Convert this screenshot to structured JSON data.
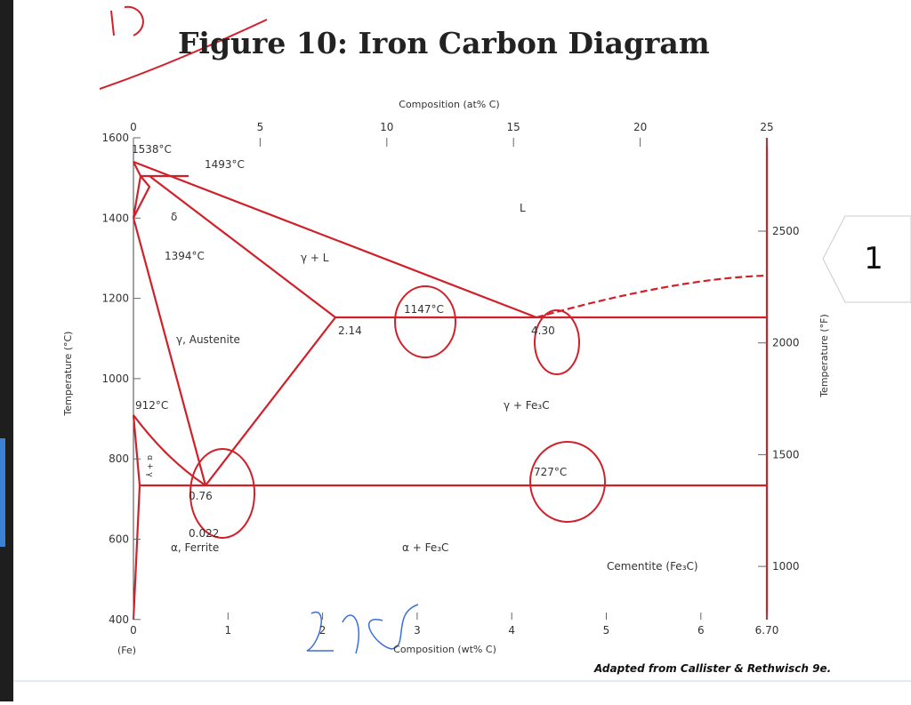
{
  "header": {
    "title": "Figure 10: Iron Carbon Diagram"
  },
  "axes": {
    "left": {
      "label": "Temperature (°C)",
      "ticks": [
        1600,
        1400,
        1200,
        1000,
        800,
        600,
        400
      ]
    },
    "right": {
      "label": "Temperature (°F)",
      "ticks": [
        2500,
        2000,
        1500,
        1000
      ]
    },
    "top": {
      "label": "Composition (at% C)",
      "ticks": [
        0,
        5,
        10,
        15,
        20,
        25
      ]
    },
    "bottom": {
      "label": "Composition (wt% C)",
      "ticks": [
        0,
        1,
        2,
        3,
        4,
        5,
        6,
        "6.70"
      ],
      "origin": "(Fe)"
    }
  },
  "labels": [
    "1538°C",
    "1493°C",
    "δ",
    "1394°C",
    "L",
    "γ + L",
    "γ, Austenite",
    "1147°C",
    "2.14",
    "4.30",
    "γ + Fe₃C",
    "912°C",
    "α + γ",
    "727°C",
    "0.76",
    "0.022",
    "α, Ferrite",
    "α + Fe₃C",
    "Cementite (Fe₃C)"
  ],
  "credit": "Adapted from Callister & Rethwisch 9e.",
  "tab": "1"
}
